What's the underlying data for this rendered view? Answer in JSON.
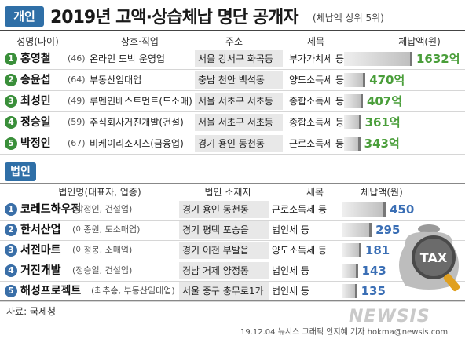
{
  "header": {
    "badge": "개인",
    "title": "2019년 고액·상습체납 명단 공개자",
    "note": "(체납액 상위 5위)"
  },
  "individual": {
    "columns": [
      "성명(나이)",
      "상호·직업",
      "주소",
      "세목",
      "체납액(원)"
    ],
    "rows": [
      {
        "rank": "1",
        "name": "홍영철",
        "age": "(46)",
        "business": "온라인 도박 운영업",
        "address": "서울 강서구 화곡동",
        "tax": "부가가치세 등",
        "amount": "1632억",
        "value": 1632
      },
      {
        "rank": "2",
        "name": "송윤섭",
        "age": "(64)",
        "business": "부동산임대업",
        "address": "충남 천안 백석동",
        "tax": "양도소득세 등",
        "amount": "470억",
        "value": 470
      },
      {
        "rank": "3",
        "name": "최성민",
        "age": "(49)",
        "business": "루멘인베스트먼트(도소매)",
        "address": "서울 서초구 서초동",
        "tax": "종합소득세 등",
        "amount": "407억",
        "value": 407
      },
      {
        "rank": "4",
        "name": "정승일",
        "age": "(59)",
        "business": "주식회사거진개발(건설)",
        "address": "서울 서초구 서초동",
        "tax": "종합소득세 등",
        "amount": "361억",
        "value": 361
      },
      {
        "rank": "5",
        "name": "박정인",
        "age": "(67)",
        "business": "비케이리소시스(금융업)",
        "address": "경기 용인 동천동",
        "tax": "근로소득세 등",
        "amount": "343억",
        "value": 343
      }
    ]
  },
  "corporate": {
    "badge": "법인",
    "columns": [
      "법인명(대표자, 업종)",
      "법인 소재지",
      "세목",
      "체납액(원)"
    ],
    "rows": [
      {
        "rank": "1",
        "name": "코레드하우징",
        "detail": "(박정인, 건설업)",
        "address": "경기 용인 동천동",
        "tax": "근로소득세 등",
        "amount": "450",
        "value": 450
      },
      {
        "rank": "2",
        "name": "한서산업",
        "detail": "(이종원, 도소매업)",
        "address": "경기 평택 포승읍",
        "tax": "법인세 등",
        "amount": "295",
        "value": 295
      },
      {
        "rank": "3",
        "name": "서전마트",
        "detail": "(이정봉, 소매업)",
        "address": "경기 이천 부발읍",
        "tax": "양도소득세 등",
        "amount": "181",
        "value": 181
      },
      {
        "rank": "4",
        "name": "거진개발",
        "detail": "(정승일, 건설업)",
        "address": "경남 거제 양정동",
        "tax": "법인세 등",
        "amount": "143",
        "value": 143
      },
      {
        "rank": "5",
        "name": "해성프로젝트",
        "detail": "(최추송, 부동산임대업)",
        "address": "서울 중구 충무로1가",
        "tax": "법인세 등",
        "amount": "135",
        "value": 135
      }
    ]
  },
  "tax_icon_label": "TAX",
  "source": "자료: 국세청",
  "credit": "19.12.04 뉴시스 그래픽 안지혜 기자 hokma@newsis.com",
  "logo": "NEWSIS",
  "colors": {
    "accent": "#2f6fa7",
    "person_amount": "#4a9e3a",
    "corp_amount": "#3b6fb5"
  }
}
